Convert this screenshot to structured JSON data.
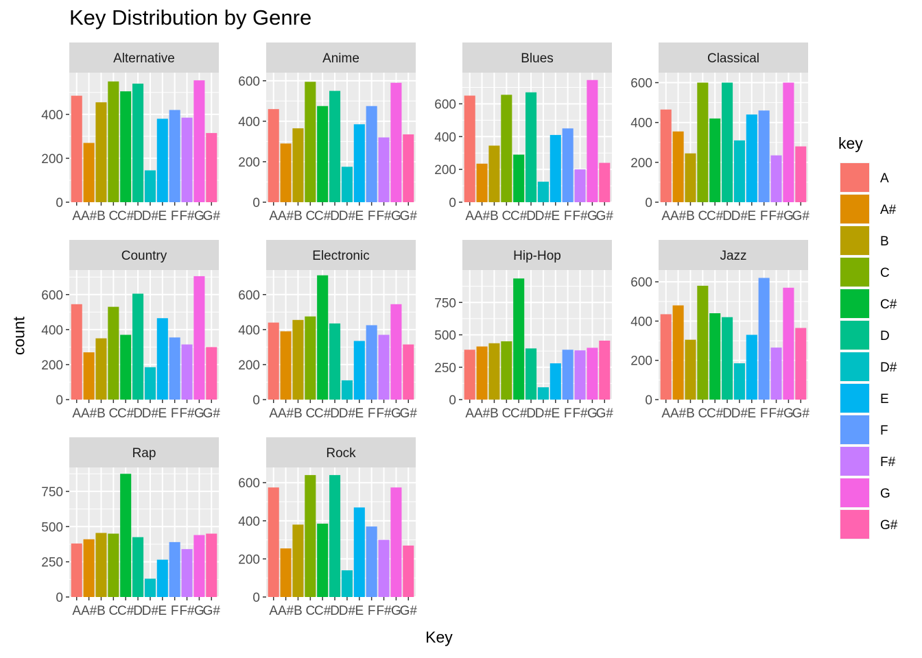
{
  "chart_data": {
    "type": "bar",
    "title": "Key Distribution by Genre",
    "xlabel": "Key",
    "ylabel": "count",
    "grid": true,
    "legend_title": "key",
    "legend_position": "right",
    "categories": [
      "A",
      "A#",
      "B",
      "C",
      "C#",
      "D",
      "D#",
      "E",
      "F",
      "F#",
      "G",
      "G#"
    ],
    "colors": {
      "A": "#F8766D",
      "A#": "#DE8C00",
      "B": "#B79F00",
      "C": "#7CAE00",
      "C#": "#00BA38",
      "D": "#00C08B",
      "D#": "#00BFC4",
      "E": "#00B4F0",
      "F": "#619CFF",
      "F#": "#C77CFF",
      "G": "#F564E3",
      "G#": "#FF64B0"
    },
    "facets": [
      {
        "name": "Alternative",
        "ylim": [
          0,
          590
        ],
        "yticks": [
          0,
          200,
          400
        ],
        "values": [
          485,
          270,
          455,
          550,
          505,
          540,
          145,
          380,
          420,
          385,
          555,
          315
        ]
      },
      {
        "name": "Anime",
        "ylim": [
          0,
          640
        ],
        "yticks": [
          0,
          200,
          400,
          600
        ],
        "values": [
          460,
          290,
          365,
          595,
          475,
          550,
          175,
          385,
          475,
          320,
          590,
          335
        ]
      },
      {
        "name": "Blues",
        "ylim": [
          0,
          790
        ],
        "yticks": [
          0,
          200,
          400,
          600
        ],
        "values": [
          650,
          235,
          345,
          655,
          290,
          670,
          125,
          410,
          450,
          200,
          745,
          240
        ]
      },
      {
        "name": "Classical",
        "ylim": [
          0,
          650
        ],
        "yticks": [
          0,
          200,
          400,
          600
        ],
        "values": [
          465,
          355,
          245,
          600,
          420,
          600,
          310,
          440,
          460,
          235,
          600,
          280
        ]
      },
      {
        "name": "Country",
        "ylim": [
          0,
          740
        ],
        "yticks": [
          0,
          200,
          400,
          600
        ],
        "values": [
          545,
          270,
          350,
          530,
          370,
          605,
          185,
          465,
          355,
          315,
          705,
          300
        ]
      },
      {
        "name": "Electronic",
        "ylim": [
          0,
          740
        ],
        "yticks": [
          0,
          200,
          400,
          600
        ],
        "values": [
          440,
          390,
          455,
          475,
          710,
          435,
          110,
          335,
          425,
          370,
          545,
          315
        ]
      },
      {
        "name": "Hip-Hop",
        "ylim": [
          0,
          1000
        ],
        "yticks": [
          0,
          250,
          500,
          750
        ],
        "values": [
          385,
          410,
          435,
          450,
          935,
          395,
          95,
          280,
          385,
          380,
          400,
          455
        ]
      },
      {
        "name": "Jazz",
        "ylim": [
          0,
          660
        ],
        "yticks": [
          0,
          200,
          400,
          600
        ],
        "values": [
          435,
          480,
          305,
          580,
          440,
          420,
          185,
          330,
          620,
          265,
          570,
          365
        ]
      },
      {
        "name": "Rap",
        "ylim": [
          0,
          920
        ],
        "yticks": [
          0,
          250,
          500,
          750
        ],
        "values": [
          380,
          410,
          455,
          450,
          875,
          425,
          130,
          265,
          390,
          340,
          440,
          450
        ]
      },
      {
        "name": "Rock",
        "ylim": [
          0,
          680
        ],
        "yticks": [
          0,
          200,
          400,
          600
        ],
        "values": [
          575,
          255,
          380,
          640,
          385,
          640,
          140,
          470,
          370,
          300,
          575,
          270
        ]
      }
    ]
  }
}
